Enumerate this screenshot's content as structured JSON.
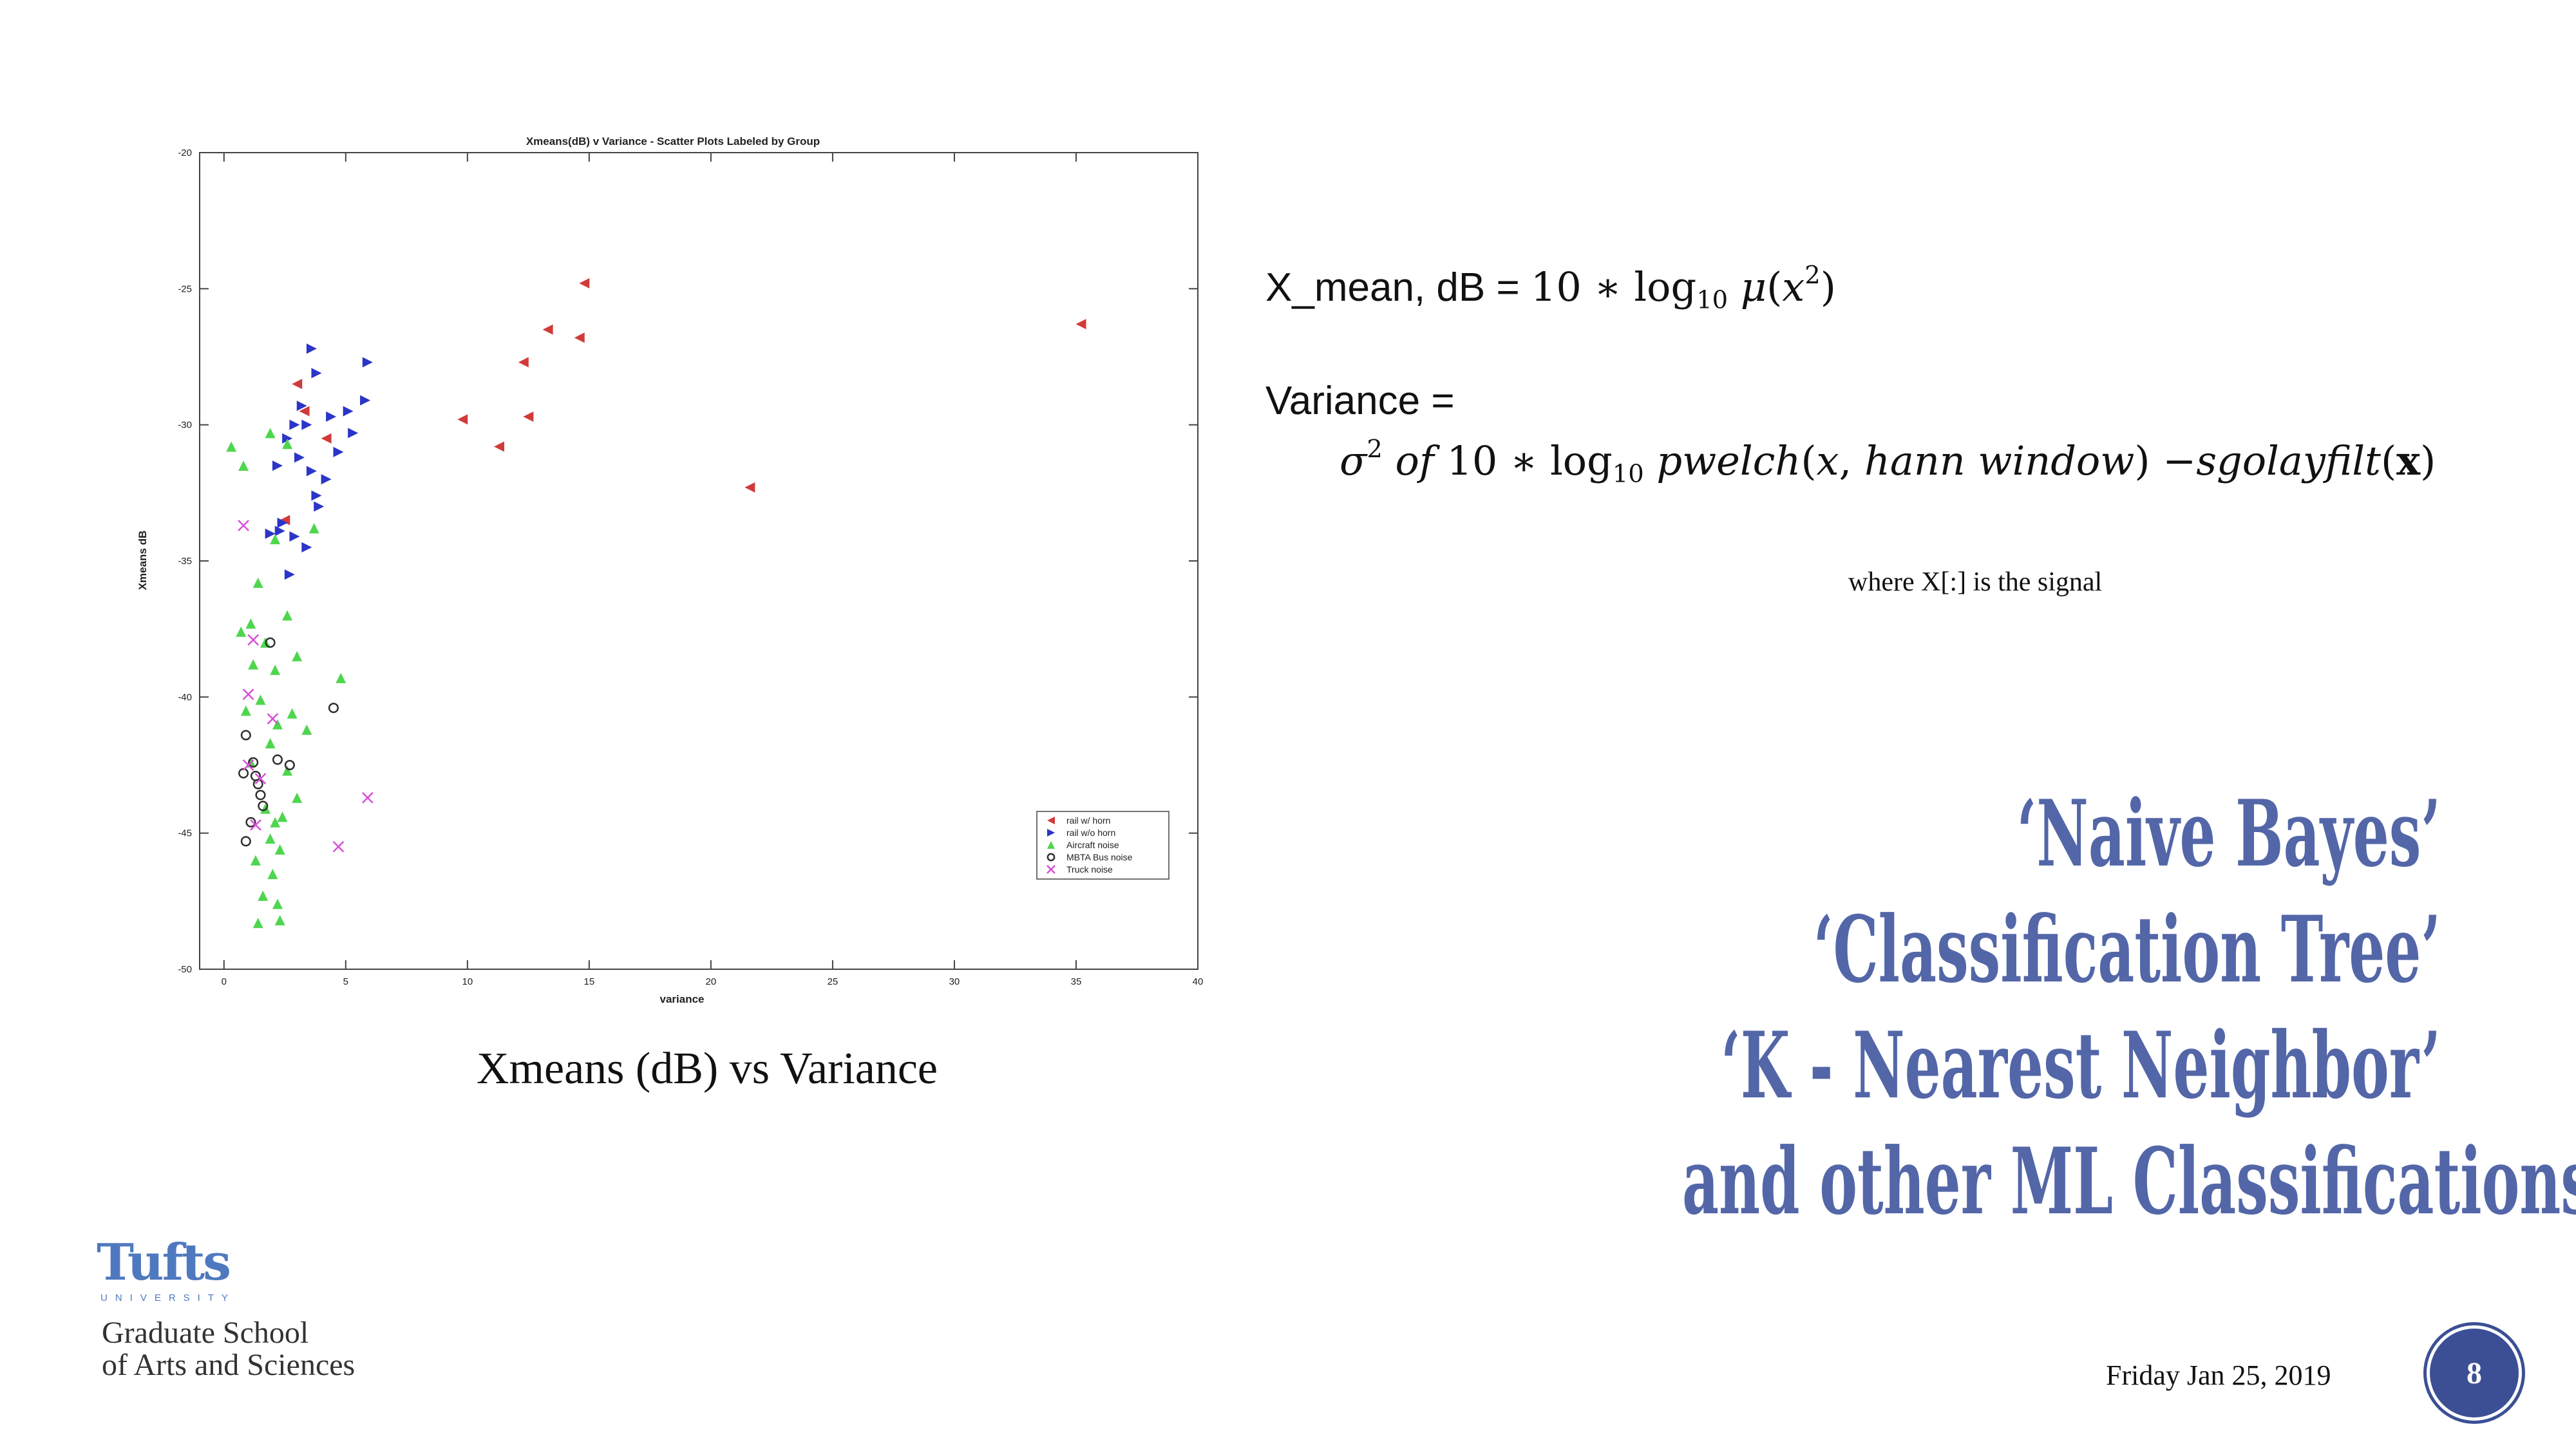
{
  "slide": {
    "caption": "Xmeans (dB) vs Variance",
    "formulas": {
      "mean_lhs": "X_mean, dB",
      "variance_lhs": "Variance =",
      "note": "where X[:] is the signal"
    },
    "methods": [
      "‘Naive Bayes’",
      "‘Classification Tree’",
      "‘K - Nearest Neighbor’",
      "and other ML Classifications"
    ],
    "logo": {
      "name": "Tufts",
      "subtitle": "UNIVERSITY",
      "school_line1": "Graduate School",
      "school_line2": "of Arts and Sciences"
    },
    "date": "Friday Jan 25, 2019",
    "page_number": "8",
    "brand_color": "#5366a8"
  },
  "chart_data": {
    "type": "scatter",
    "title": "Xmeans(dB) v Variance - Scatter Plots Labeled by Group",
    "xlabel": "variance",
    "ylabel": "Xmeans dB",
    "xlim": [
      -1,
      40
    ],
    "ylim": [
      -50,
      -20
    ],
    "xticks": [
      0,
      5,
      10,
      15,
      20,
      25,
      30,
      35,
      40
    ],
    "yticks": [
      -20,
      -25,
      -30,
      -35,
      -40,
      -45,
      -50
    ],
    "grid": false,
    "legend_position": "lower-right",
    "series": [
      {
        "name": "rail w/  horn",
        "color": "#d23a3a",
        "marker": "triangle-left",
        "points": [
          [
            3.0,
            -28.5
          ],
          [
            3.3,
            -29.5
          ],
          [
            4.2,
            -30.5
          ],
          [
            9.8,
            -29.8
          ],
          [
            11.3,
            -30.8
          ],
          [
            12.3,
            -27.7
          ],
          [
            12.5,
            -29.7
          ],
          [
            13.3,
            -26.5
          ],
          [
            14.6,
            -26.8
          ],
          [
            14.8,
            -24.8
          ],
          [
            21.6,
            -32.3
          ],
          [
            35.2,
            -26.3
          ],
          [
            2.5,
            -33.5
          ]
        ]
      },
      {
        "name": "rail w/o  horn",
        "color": "#2b35c8",
        "marker": "triangle-right",
        "points": [
          [
            3.6,
            -27.2
          ],
          [
            3.8,
            -28.1
          ],
          [
            3.2,
            -29.3
          ],
          [
            2.9,
            -30.0
          ],
          [
            2.6,
            -30.5
          ],
          [
            3.1,
            -31.2
          ],
          [
            2.2,
            -31.5
          ],
          [
            3.6,
            -31.7
          ],
          [
            4.2,
            -32.0
          ],
          [
            3.8,
            -32.6
          ],
          [
            2.4,
            -33.6
          ],
          [
            2.9,
            -34.1
          ],
          [
            3.4,
            -34.5
          ],
          [
            2.7,
            -35.5
          ],
          [
            5.1,
            -29.5
          ],
          [
            5.3,
            -30.3
          ],
          [
            5.8,
            -29.1
          ],
          [
            5.9,
            -27.7
          ],
          [
            4.4,
            -29.7
          ],
          [
            4.7,
            -31.0
          ],
          [
            1.9,
            -34.0
          ],
          [
            3.4,
            -30.0
          ],
          [
            3.9,
            -33.0
          ],
          [
            2.3,
            -33.9
          ]
        ]
      },
      {
        "name": "Aircraft  noise",
        "color": "#4ed64e",
        "marker": "triangle-up",
        "points": [
          [
            0.3,
            -30.8
          ],
          [
            0.8,
            -31.5
          ],
          [
            1.9,
            -30.3
          ],
          [
            2.6,
            -30.7
          ],
          [
            2.1,
            -34.2
          ],
          [
            3.7,
            -33.8
          ],
          [
            1.4,
            -35.8
          ],
          [
            1.1,
            -37.3
          ],
          [
            1.7,
            -38.0
          ],
          [
            2.6,
            -37.0
          ],
          [
            1.2,
            -38.8
          ],
          [
            2.1,
            -39.0
          ],
          [
            3.0,
            -38.5
          ],
          [
            4.8,
            -39.3
          ],
          [
            1.5,
            -40.1
          ],
          [
            2.2,
            -41.0
          ],
          [
            1.9,
            -41.7
          ],
          [
            3.4,
            -41.2
          ],
          [
            1.1,
            -42.4
          ],
          [
            2.6,
            -42.7
          ],
          [
            3.0,
            -43.7
          ],
          [
            1.7,
            -44.1
          ],
          [
            2.1,
            -44.6
          ],
          [
            2.4,
            -44.4
          ],
          [
            1.9,
            -45.2
          ],
          [
            2.3,
            -45.6
          ],
          [
            1.3,
            -46.0
          ],
          [
            2.0,
            -46.5
          ],
          [
            1.6,
            -47.3
          ],
          [
            2.2,
            -47.6
          ],
          [
            1.4,
            -48.3
          ],
          [
            2.3,
            -48.2
          ],
          [
            0.7,
            -37.6
          ],
          [
            0.9,
            -40.5
          ],
          [
            2.8,
            -40.6
          ]
        ]
      },
      {
        "name": "MBTA Bus noise",
        "color": "#2e2e2e",
        "marker": "circle",
        "points": [
          [
            0.9,
            -41.4
          ],
          [
            1.2,
            -42.4
          ],
          [
            0.8,
            -42.8
          ],
          [
            1.3,
            -42.9
          ],
          [
            1.5,
            -43.6
          ],
          [
            1.1,
            -44.6
          ],
          [
            0.9,
            -45.3
          ],
          [
            2.7,
            -42.5
          ],
          [
            4.5,
            -40.4
          ],
          [
            1.9,
            -38.0
          ],
          [
            1.6,
            -44.0
          ],
          [
            2.2,
            -42.3
          ],
          [
            1.4,
            -43.2
          ]
        ]
      },
      {
        "name": "Truck  noise",
        "color": "#d84fd8",
        "marker": "x",
        "points": [
          [
            0.8,
            -33.7
          ],
          [
            1.2,
            -37.9
          ],
          [
            1.0,
            -39.9
          ],
          [
            1.0,
            -42.5
          ],
          [
            1.5,
            -43.0
          ],
          [
            5.9,
            -43.7
          ],
          [
            4.7,
            -45.5
          ],
          [
            1.3,
            -44.7
          ],
          [
            2.0,
            -40.8
          ]
        ]
      }
    ]
  }
}
